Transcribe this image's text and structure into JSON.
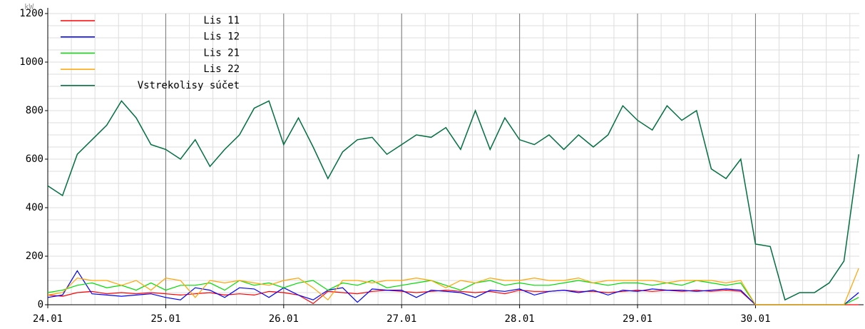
{
  "chart_data": {
    "type": "line",
    "y_label": "kW",
    "x": [
      0,
      0.125,
      0.25,
      0.375,
      0.5,
      0.625,
      0.75,
      0.875,
      1,
      1.125,
      1.25,
      1.375,
      1.5,
      1.625,
      1.75,
      1.875,
      2,
      2.125,
      2.25,
      2.375,
      2.5,
      2.625,
      2.75,
      2.875,
      3,
      3.125,
      3.25,
      3.375,
      3.5,
      3.625,
      3.75,
      3.875,
      4,
      4.125,
      4.25,
      4.375,
      4.5,
      4.625,
      4.75,
      4.875,
      5,
      5.125,
      5.25,
      5.375,
      5.5,
      5.625,
      5.75,
      5.875,
      6,
      6.125,
      6.25,
      6.375,
      6.5,
      6.625,
      6.75,
      6.875
    ],
    "series": [
      {
        "name": "Lis 11",
        "color": "#ff0000",
        "values": [
          40,
          35,
          50,
          55,
          45,
          50,
          45,
          50,
          45,
          40,
          45,
          50,
          40,
          45,
          40,
          55,
          50,
          40,
          5,
          55,
          50,
          45,
          55,
          60,
          55,
          50,
          55,
          60,
          55,
          50,
          55,
          45,
          60,
          55,
          55,
          60,
          55,
          55,
          50,
          55,
          60,
          55,
          60,
          55,
          60,
          55,
          60,
          55,
          0,
          0,
          0,
          0,
          0,
          0,
          0,
          0
        ]
      },
      {
        "name": "Lis 12",
        "color": "#0000ff",
        "values": [
          30,
          40,
          140,
          45,
          40,
          35,
          40,
          45,
          30,
          20,
          70,
          60,
          30,
          70,
          65,
          30,
          70,
          40,
          20,
          60,
          70,
          10,
          65,
          60,
          60,
          30,
          60,
          55,
          50,
          30,
          60,
          55,
          65,
          40,
          55,
          60,
          50,
          60,
          40,
          60,
          55,
          65,
          60,
          60,
          55,
          60,
          65,
          60,
          0,
          0,
          0,
          0,
          0,
          0,
          0,
          50
        ]
      },
      {
        "name": "Lis 21",
        "color": "#00dd00",
        "values": [
          50,
          60,
          80,
          90,
          70,
          80,
          60,
          90,
          60,
          80,
          80,
          90,
          60,
          100,
          80,
          90,
          70,
          90,
          100,
          60,
          90,
          80,
          100,
          70,
          80,
          90,
          100,
          80,
          60,
          90,
          100,
          80,
          90,
          80,
          80,
          90,
          100,
          90,
          80,
          90,
          90,
          80,
          90,
          80,
          100,
          90,
          80,
          90,
          0,
          0,
          0,
          0,
          0,
          0,
          0,
          30
        ]
      },
      {
        "name": "Lis 22",
        "color": "#ffa500",
        "values": [
          40,
          50,
          110,
          100,
          100,
          80,
          100,
          60,
          110,
          100,
          30,
          100,
          90,
          100,
          90,
          80,
          100,
          110,
          70,
          20,
          100,
          100,
          90,
          100,
          100,
          110,
          100,
          70,
          100,
          90,
          110,
          100,
          100,
          110,
          100,
          100,
          110,
          90,
          100,
          100,
          100,
          100,
          90,
          100,
          100,
          100,
          90,
          100,
          0,
          0,
          0,
          0,
          0,
          0,
          0,
          150
        ]
      },
      {
        "name": "Vstrekolisy súčet",
        "color": "#007040",
        "values": [
          490,
          450,
          620,
          680,
          740,
          840,
          770,
          660,
          640,
          600,
          680,
          570,
          640,
          700,
          810,
          840,
          660,
          770,
          650,
          520,
          630,
          680,
          690,
          620,
          660,
          700,
          690,
          730,
          640,
          800,
          640,
          770,
          680,
          660,
          700,
          640,
          700,
          650,
          700,
          820,
          760,
          720,
          820,
          760,
          800,
          560,
          520,
          600,
          250,
          240,
          20,
          50,
          50,
          90,
          180,
          620
        ]
      }
    ],
    "xlim": [
      0,
      6.88
    ],
    "xticks": [
      {
        "value": 0,
        "label": "24.01"
      },
      {
        "value": 1,
        "label": "25.01"
      },
      {
        "value": 2,
        "label": "26.01"
      },
      {
        "value": 3,
        "label": "27.01"
      },
      {
        "value": 4,
        "label": "28.01"
      },
      {
        "value": 5,
        "label": "29.01"
      },
      {
        "value": 6,
        "label": "30.01"
      }
    ],
    "ylim": [
      0,
      1200
    ],
    "yticks": [
      0,
      200,
      400,
      600,
      800,
      1000,
      1200
    ],
    "grid": true,
    "legend": "top-left"
  }
}
